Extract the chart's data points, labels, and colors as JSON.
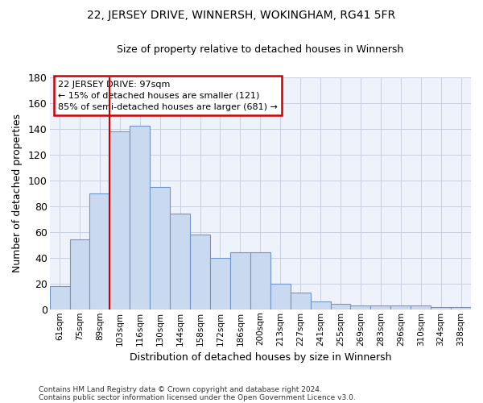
{
  "title": "22, JERSEY DRIVE, WINNERSH, WOKINGHAM, RG41 5FR",
  "subtitle": "Size of property relative to detached houses in Winnersh",
  "xlabel": "Distribution of detached houses by size in Winnersh",
  "ylabel": "Number of detached properties",
  "categories": [
    "61sqm",
    "75sqm",
    "89sqm",
    "103sqm",
    "116sqm",
    "130sqm",
    "144sqm",
    "158sqm",
    "172sqm",
    "186sqm",
    "200sqm",
    "213sqm",
    "227sqm",
    "241sqm",
    "255sqm",
    "269sqm",
    "283sqm",
    "296sqm",
    "310sqm",
    "324sqm",
    "338sqm"
  ],
  "values": [
    18,
    54,
    90,
    138,
    142,
    95,
    74,
    58,
    40,
    44,
    44,
    20,
    13,
    6,
    4,
    3,
    3,
    3,
    3,
    2,
    2
  ],
  "bar_color": "#c9d9f0",
  "bar_edge_color": "#7096c8",
  "grid_color": "#c8d0e0",
  "background_color": "#eef2fa",
  "vline_color": "#cc0000",
  "annotation_line1": "22 JERSEY DRIVE: 97sqm",
  "annotation_line2": "← 15% of detached houses are smaller (121)",
  "annotation_line3": "85% of semi-detached houses are larger (681) →",
  "annotation_box_edge_color": "#cc0000",
  "ylim": [
    0,
    180
  ],
  "yticks": [
    0,
    20,
    40,
    60,
    80,
    100,
    120,
    140,
    160,
    180
  ],
  "footnote1": "Contains HM Land Registry data © Crown copyright and database right 2024.",
  "footnote2": "Contains public sector information licensed under the Open Government Licence v3.0."
}
